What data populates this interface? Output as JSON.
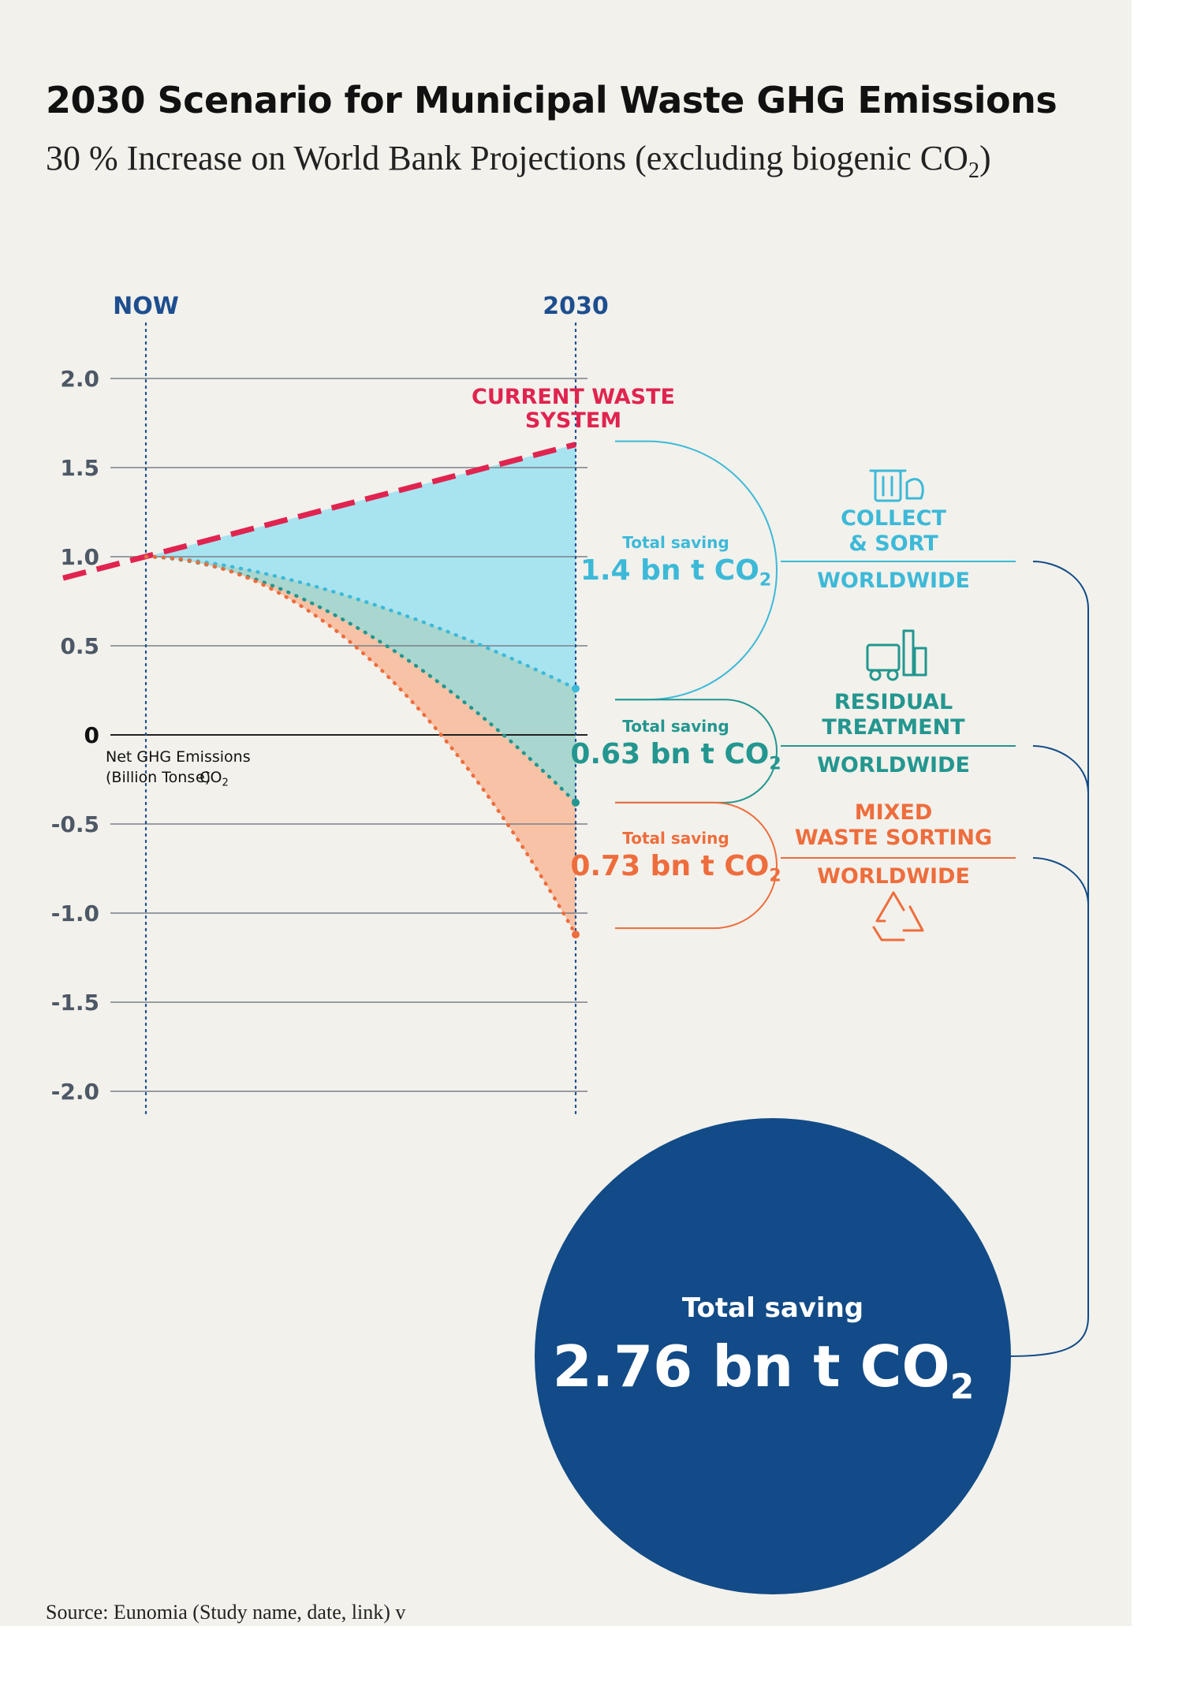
{
  "title": "2030 Scenario for Municipal Waste GHG Emissions",
  "subtitle_main": "30 % Increase on World Bank Projections (excluding biogenic CO",
  "subtitle_sub": "2",
  "subtitle_end": ")",
  "source": "Source: Eunomia (Study name, date, link) v",
  "colors": {
    "background": "#f2f1ec",
    "current": "#e0244f",
    "collect": "#3db9d8",
    "collect_fill": "#a8e4f0",
    "residual": "#23968f",
    "residual_fill": "#a9d6ce",
    "mixed": "#ee6d3c",
    "mixed_fill": "#f7c2a6",
    "total": "#124b87",
    "axis_text": "#4d5866",
    "header_text": "#1d4e8f"
  },
  "chart_data": {
    "type": "area",
    "x_labels": [
      "NOW",
      "2030"
    ],
    "ylabel_line1": "Net GHG Emissions",
    "ylabel_line2_a": "(Billion Tons CO",
    "ylabel_line2_sub": "2",
    "ylabel_line2_b": "e)",
    "ylim": [
      -2.0,
      2.0
    ],
    "yticks": [
      {
        "value": 2.0,
        "label": "2.0"
      },
      {
        "value": 1.5,
        "label": "1.5"
      },
      {
        "value": 1.0,
        "label": "1.0"
      },
      {
        "value": 0.5,
        "label": "0.5"
      },
      {
        "value": 0,
        "label": "0"
      },
      {
        "value": -0.5,
        "label": "-0.5"
      },
      {
        "value": -1.0,
        "label": "-1.0"
      },
      {
        "value": -1.5,
        "label": "-1.5"
      },
      {
        "value": -2.0,
        "label": "-2.0"
      }
    ],
    "series": [
      {
        "name_line1": "CURRENT WASTE",
        "name_line2": "SYSTEM",
        "style": "dashed",
        "start": 1.0,
        "end": 1.63
      },
      {
        "name_line1": "COLLECT",
        "name_line2": "& SORT",
        "region": "WORLDWIDE",
        "style": "dotted",
        "start": 1.0,
        "end": 0.26,
        "saving_label": "Total saving",
        "saving_value": "1.4 bn t CO",
        "saving_sub": "2"
      },
      {
        "name_line1": "RESIDUAL",
        "name_line2": "TREATMENT",
        "region": "WORLDWIDE",
        "style": "dotted",
        "start": 1.0,
        "end": -0.38,
        "saving_label": "Total saving",
        "saving_value": "0.63 bn t CO",
        "saving_sub": "2"
      },
      {
        "name_line1": "MIXED",
        "name_line2": "WASTE SORTING",
        "region": "WORLDWIDE",
        "style": "dotted",
        "start": 1.0,
        "end": -1.12,
        "saving_label": "Total saving",
        "saving_value": "0.73 bn t CO",
        "saving_sub": "2"
      }
    ],
    "total": {
      "label": "Total saving",
      "value": "2.76 bn t CO",
      "sub": "2"
    }
  }
}
